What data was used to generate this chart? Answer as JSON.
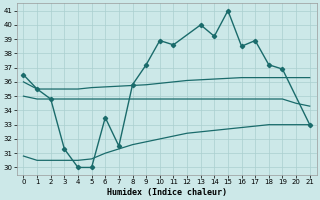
{
  "xlabel": "Humidex (Indice chaleur)",
  "xlim": [
    -0.5,
    21.5
  ],
  "ylim": [
    29.5,
    41.5
  ],
  "yticks": [
    30,
    31,
    32,
    33,
    34,
    35,
    36,
    37,
    38,
    39,
    40,
    41
  ],
  "xticks": [
    0,
    1,
    2,
    3,
    4,
    5,
    6,
    7,
    8,
    9,
    10,
    11,
    12,
    13,
    14,
    15,
    16,
    17,
    18,
    19,
    20,
    21
  ],
  "bg_color": "#cce8e8",
  "grid_color": "#aacfcf",
  "line_color": "#1a6b6b",
  "main_x": [
    0,
    1,
    2,
    3,
    4,
    5,
    6,
    7,
    8,
    9,
    10,
    11,
    13,
    14,
    15,
    16,
    17,
    18,
    19,
    21
  ],
  "main_y": [
    36.5,
    35.5,
    34.8,
    31.3,
    30.0,
    30.0,
    33.5,
    31.5,
    35.8,
    37.2,
    38.9,
    38.6,
    40.0,
    39.2,
    41.0,
    38.5,
    38.9,
    37.2,
    36.9,
    33.0
  ],
  "upper_x": [
    0,
    1,
    2,
    3,
    4,
    5,
    6,
    7,
    8,
    9,
    10,
    11,
    12,
    13,
    14,
    15,
    16,
    17,
    18,
    19,
    20,
    21
  ],
  "upper_y": [
    36.0,
    35.5,
    35.5,
    35.5,
    35.5,
    35.6,
    35.65,
    35.7,
    35.75,
    35.8,
    35.9,
    36.0,
    36.1,
    36.15,
    36.2,
    36.25,
    36.3,
    36.3,
    36.3,
    36.3,
    36.3,
    36.3
  ],
  "mid_x": [
    0,
    1,
    2,
    3,
    4,
    5,
    6,
    7,
    8,
    9,
    10,
    11,
    12,
    13,
    14,
    15,
    16,
    17,
    18,
    19,
    20,
    21
  ],
  "mid_y": [
    35.0,
    34.8,
    34.8,
    34.8,
    34.8,
    34.8,
    34.8,
    34.8,
    34.8,
    34.8,
    34.8,
    34.8,
    34.8,
    34.8,
    34.8,
    34.8,
    34.8,
    34.8,
    34.8,
    34.8,
    34.5,
    34.3
  ],
  "lower_x": [
    0,
    1,
    2,
    3,
    4,
    5,
    6,
    7,
    8,
    9,
    10,
    11,
    12,
    13,
    14,
    15,
    16,
    17,
    18,
    19,
    20,
    21
  ],
  "lower_y": [
    30.8,
    30.5,
    30.5,
    30.5,
    30.5,
    30.6,
    31.0,
    31.3,
    31.6,
    31.8,
    32.0,
    32.2,
    32.4,
    32.5,
    32.6,
    32.7,
    32.8,
    32.9,
    33.0,
    33.0,
    33.0,
    33.0
  ]
}
